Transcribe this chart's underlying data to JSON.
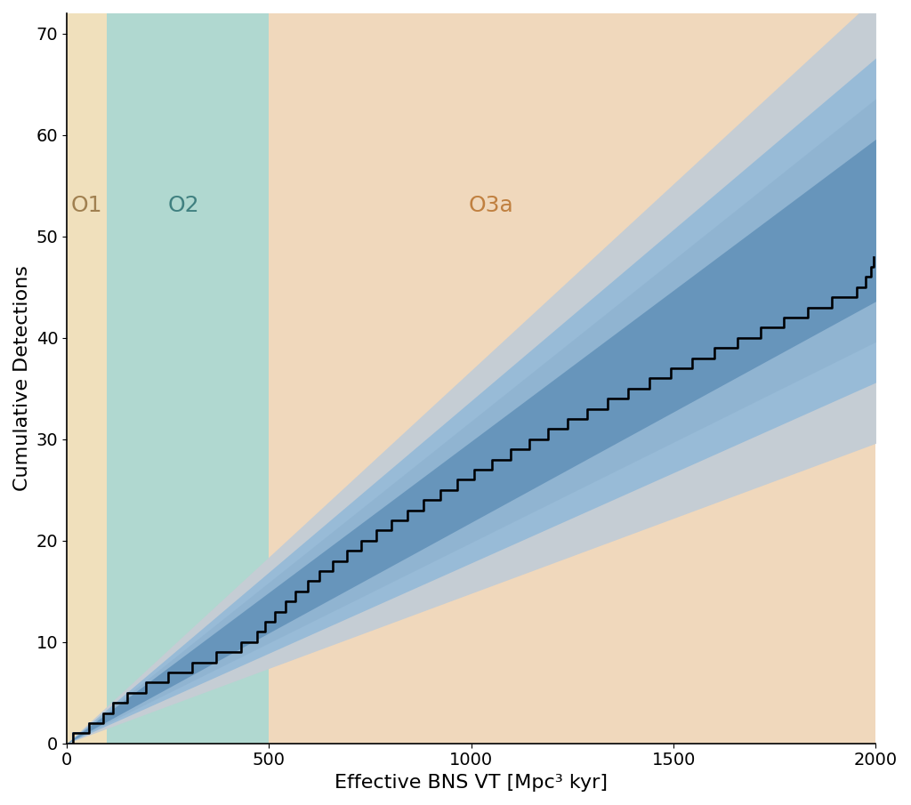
{
  "xlabel": "Effective BNS VT [Mpc³ kyr]",
  "ylabel": "Cumulative Detections",
  "xlim": [
    0,
    2000
  ],
  "ylim": [
    0,
    72
  ],
  "yticks": [
    0,
    10,
    20,
    30,
    40,
    50,
    60,
    70
  ],
  "xticks": [
    0,
    500,
    1000,
    1500,
    2000
  ],
  "bg_color": "#ffffff",
  "O1_color": "#f0e0bc",
  "O2_color": "#b0d8d0",
  "O3a_color": "#f0d8bc",
  "O1_x_start": 0,
  "O1_x_end": 100,
  "O2_x_start": 100,
  "O2_x_end": 500,
  "O3a_x_start": 500,
  "O3a_x_end": 2000,
  "O1_label": "O1",
  "O2_label": "O2",
  "O3a_label": "O3a",
  "label_fontsize": 18,
  "axis_label_fontsize": 16,
  "tick_fontsize": 14,
  "blue_dark_color": "#3a6a9a",
  "blue_mid_color": "#6090b8",
  "blue_light_color": "#90b8d8",
  "gray_dark_color": "#8a9aa8",
  "gray_mid_color": "#aab8c2",
  "gray_light_color": "#c5cdd4",
  "black_line_color": "#000000",
  "blue_line_color": "#2a5a9a",
  "rate_central": 0.0258,
  "rate_blue_inner_lo": 0.0218,
  "rate_blue_inner_hi": 0.0298,
  "rate_blue_outer_lo": 0.0178,
  "rate_blue_outer_hi": 0.0338,
  "rate_gray_inner_lo": 0.0198,
  "rate_gray_inner_hi": 0.0318,
  "rate_gray_outer_lo": 0.0148,
  "rate_gray_outer_hi": 0.0368,
  "o1_events": [
    15,
    55,
    90
  ],
  "o2_events": [
    115,
    150,
    195,
    250,
    310,
    370,
    430,
    470,
    490
  ],
  "o3a_events": [
    515,
    540,
    565,
    595,
    625,
    658,
    692,
    728,
    765,
    803,
    842,
    882,
    923,
    965,
    1008,
    1052,
    1097,
    1143,
    1190,
    1238,
    1287,
    1337,
    1388,
    1440,
    1493,
    1547,
    1602,
    1658,
    1715,
    1773,
    1832,
    1892,
    1953,
    1975,
    1988,
    1995
  ]
}
